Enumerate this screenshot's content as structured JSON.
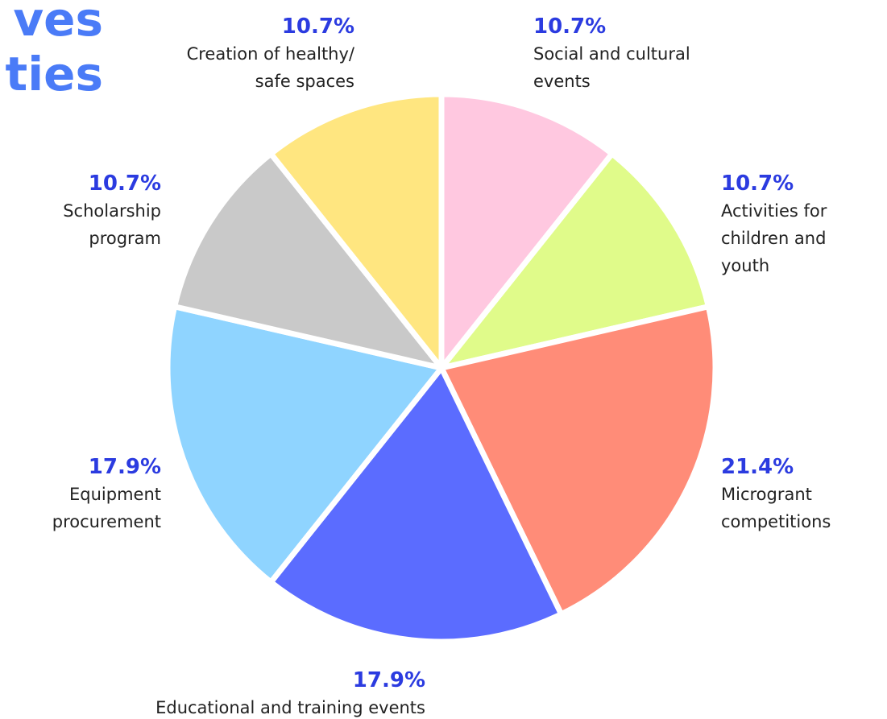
{
  "chart_data": {
    "type": "pie",
    "title_lines": [
      "ves",
      "ties"
    ],
    "categories": [
      "Social and cultural events",
      "Activities for children and youth",
      "Microgrant competitions",
      "Educational and training events",
      "Equipment procurement",
      "Scholarship program",
      "Creation of healthy/ safe spaces"
    ],
    "values": [
      10.7,
      10.7,
      21.4,
      17.9,
      17.9,
      10.7,
      10.7
    ],
    "value_labels": [
      "10.7%",
      "10.7%",
      "21.4%",
      "17.9%",
      "17.9%",
      "10.7%",
      "10.7%"
    ],
    "colors": [
      "#ffc8e0",
      "#e0fb8a",
      "#ff8c78",
      "#5b6cff",
      "#8fd4ff",
      "#c9c9c9",
      "#ffe680"
    ],
    "start_angle": -90,
    "direction": "clockwise"
  }
}
